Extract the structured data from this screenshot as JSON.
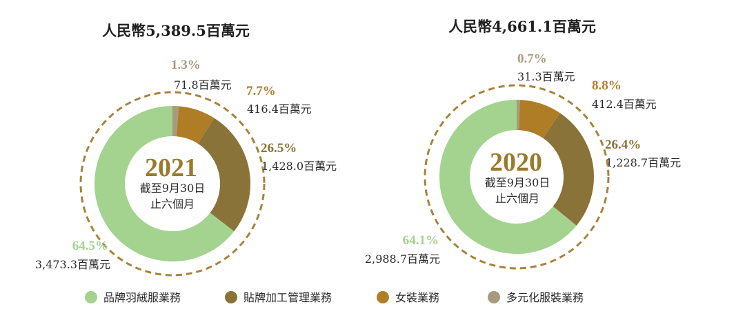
{
  "legend": [
    {
      "label": "品牌羽絨服業務",
      "color": "#a3d38f"
    },
    {
      "label": "貼牌加工管理業務",
      "color": "#8a7338"
    },
    {
      "label": "女裝業務",
      "color": "#b07d27"
    },
    {
      "label": "多元化服裝業務",
      "color": "#a89a7c"
    }
  ],
  "chart_data": [
    {
      "type": "pie",
      "title": "人民幣5,389.5百萬元",
      "center_year": "2021",
      "center_line1": "截至9月30日",
      "center_line2": "止六個月",
      "year_color": "#9a7a2c",
      "series": [
        {
          "name": "品牌羽絨服業務",
          "percent": 64.5,
          "percent_label": "64.5%",
          "amount_label": "3,473.3百萬元",
          "color": "#a3d38f"
        },
        {
          "name": "貼牌加工管理業務",
          "percent": 26.5,
          "percent_label": "26.5%",
          "amount_label": "1,428.0百萬元",
          "color": "#8a7338"
        },
        {
          "name": "女裝業務",
          "percent": 7.7,
          "percent_label": "7.7%",
          "amount_label": "416.4百萬元",
          "color": "#b07d27"
        },
        {
          "name": "多元化服裝業務",
          "percent": 1.3,
          "percent_label": "1.3%",
          "amount_label": "71.8百萬元",
          "color": "#a89a7c"
        }
      ]
    },
    {
      "type": "pie",
      "title": "人民幣4,661.1百萬元",
      "center_year": "2020",
      "center_line1": "截至9月30日",
      "center_line2": "止六個月",
      "year_color": "#9a7a2c",
      "series": [
        {
          "name": "品牌羽絨服業務",
          "percent": 64.1,
          "percent_label": "64.1%",
          "amount_label": "2,988.7百萬元",
          "color": "#a3d38f"
        },
        {
          "name": "貼牌加工管理業務",
          "percent": 26.4,
          "percent_label": "26.4%",
          "amount_label": "1,228.7百萬元",
          "color": "#8a7338"
        },
        {
          "name": "女裝業務",
          "percent": 8.8,
          "percent_label": "8.8%",
          "amount_label": "412.4百萬元",
          "color": "#b07d27"
        },
        {
          "name": "多元化服裝業務",
          "percent": 0.7,
          "percent_label": "0.7%",
          "amount_label": "31.3百萬元",
          "color": "#a89a7c"
        }
      ]
    }
  ]
}
